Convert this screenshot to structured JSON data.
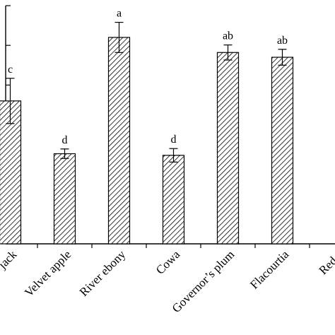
{
  "chart_data": {
    "type": "bar",
    "title": "",
    "xlabel": "",
    "ylabel": "",
    "ylim": [
      0,
      6
    ],
    "categories": [
      "key jack",
      "Velvet apple",
      "River ebony",
      "Cowa",
      "Governor’s plum",
      "Flacourtia",
      "Red p"
    ],
    "series": [
      {
        "values": [
          3.6,
          2.27,
          5.2,
          2.23,
          4.82,
          4.7,
          null
        ],
        "errors": [
          0.57,
          0.12,
          0.38,
          0.17,
          0.19,
          0.2,
          null
        ],
        "significance": [
          "c",
          "d",
          "a",
          "d",
          "ab",
          "ab",
          ""
        ]
      }
    ],
    "grid": false,
    "legend": "none"
  }
}
